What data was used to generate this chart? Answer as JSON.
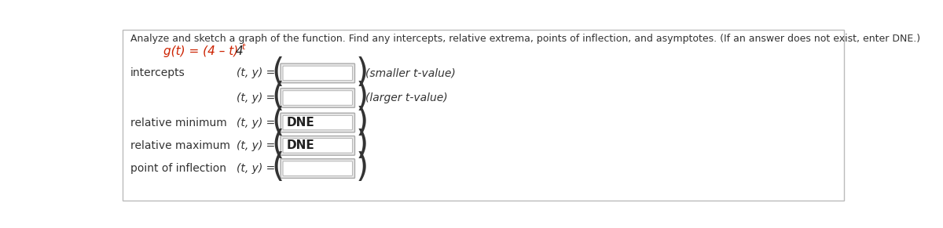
{
  "title_line": "Analyze and sketch a graph of the function. Find any intercepts, relative extrema, points of inflection, and asymptotes. (If an answer does not exist, enter DNE.)",
  "bg_color": "#ffffff",
  "text_color": "#333333",
  "red_color": "#cc2200",
  "black_color": "#222222",
  "title_fontsize": 9.0,
  "label_fontsize": 10.0,
  "func_fontsize": 11.0,
  "row_labels": [
    "intercepts",
    "",
    "relative minimum",
    "relative maximum",
    "point of inflection"
  ],
  "extra_texts": [
    "(smaller t-value)",
    "(larger t-value)",
    "",
    "",
    ""
  ],
  "box_texts": [
    "",
    "",
    "DNE",
    "DNE",
    ""
  ]
}
